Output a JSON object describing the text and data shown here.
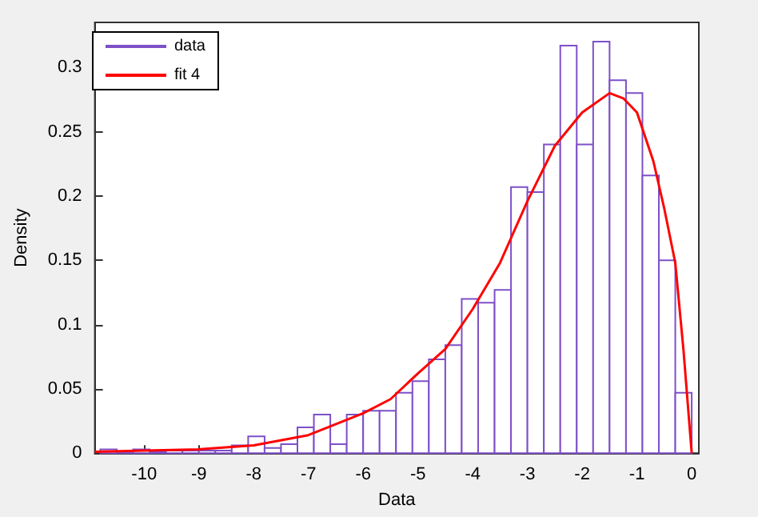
{
  "chart_data": {
    "type": "histogram",
    "xlabel": "Data",
    "ylabel": "Density",
    "xlim": [
      -10.9,
      0.13
    ],
    "ylim": [
      0,
      0.335
    ],
    "xticks": [
      -10,
      -9,
      -8,
      -7,
      -6,
      -5,
      -4,
      -3,
      -2,
      -1,
      0
    ],
    "yticks": [
      0,
      0.05,
      0.1,
      0.15,
      0.2,
      0.25,
      0.3
    ],
    "legend": "top left",
    "bins": [
      -10.8,
      -10.5,
      -10.2,
      -9.9,
      -9.6,
      -9.3,
      -9.0,
      -8.7,
      -8.4,
      -8.1,
      -7.8,
      -7.5,
      -7.2,
      -6.9,
      -6.6,
      -6.3,
      -6.0,
      -5.7,
      -5.4,
      -5.1,
      -4.8,
      -4.5,
      -4.2,
      -3.9,
      -3.6,
      -3.3,
      -3.0,
      -2.7,
      -2.4,
      -2.1,
      -1.8,
      -1.5,
      -1.2,
      -0.9,
      -0.6,
      -0.3,
      0
    ],
    "series": [
      {
        "name": "data",
        "color": "#7e50c8",
        "values": [
          0.003,
          0.001,
          0.003,
          0.001,
          0.002,
          0.002,
          0.002,
          0.002,
          0.006,
          0.013,
          0.004,
          0.007,
          0.02,
          0.03,
          0.007,
          0.03,
          0.033,
          0.033,
          0.047,
          0.056,
          0.073,
          0.084,
          0.12,
          0.117,
          0.127,
          0.207,
          0.203,
          0.24,
          0.317,
          0.24,
          0.32,
          0.29,
          0.28,
          0.216,
          0.15,
          0.047
        ]
      },
      {
        "name": "fit 4",
        "type": "line",
        "color": "#ff0000",
        "marker": "none",
        "x": [
          -10.9,
          -10,
          -9,
          -8,
          -7,
          -6,
          -5.5,
          -5,
          -4.5,
          -4,
          -3.5,
          -3,
          -2.5,
          -2,
          -1.5,
          -1.25,
          -1,
          -0.7,
          -0.5,
          -0.3,
          -0.15,
          0
        ],
        "values": [
          0.001,
          0.002,
          0.003,
          0.006,
          0.014,
          0.031,
          0.042,
          0.062,
          0.081,
          0.112,
          0.148,
          0.196,
          0.239,
          0.265,
          0.28,
          0.276,
          0.265,
          0.227,
          0.19,
          0.148,
          0.08,
          0
        ]
      }
    ]
  }
}
